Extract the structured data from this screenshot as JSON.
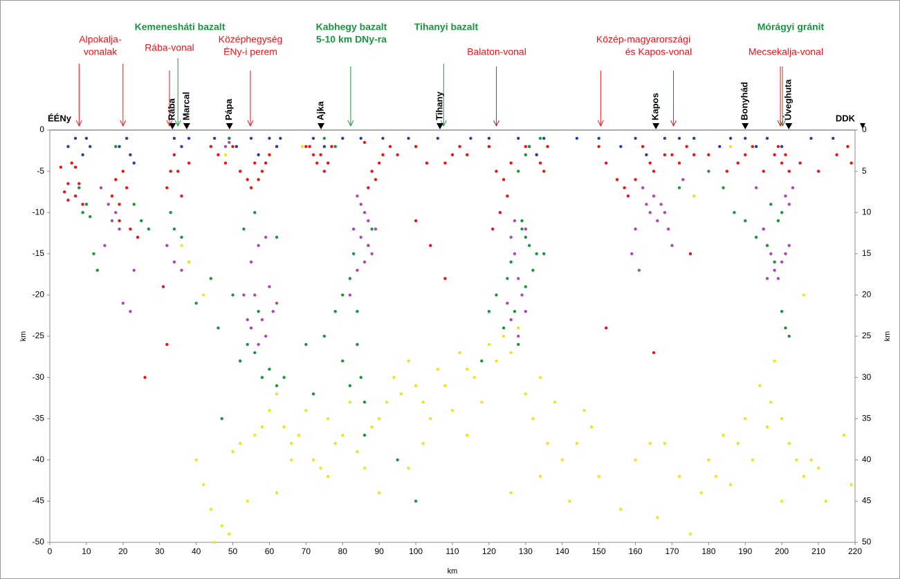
{
  "chart_data": {
    "type": "scatter",
    "xlabel": "km",
    "ylabel": "km",
    "y2label": "km",
    "xlim": [
      0,
      220
    ],
    "xticks": [
      0,
      10,
      20,
      30,
      40,
      50,
      60,
      70,
      80,
      90,
      100,
      110,
      120,
      130,
      140,
      150,
      160,
      170,
      180,
      190,
      200,
      210,
      220
    ],
    "ylim": [
      -50,
      0
    ],
    "yticks": [
      0,
      -5,
      -10,
      -15,
      -20,
      -25,
      -30,
      -35,
      -40,
      -45,
      -50
    ],
    "y2lim": [
      -50,
      0
    ],
    "y2ticks": [
      {
        "value": 0,
        "label": "0"
      },
      {
        "value": -5,
        "label": "5"
      },
      {
        "value": -10,
        "label": "10"
      },
      {
        "value": -15,
        "label": "15"
      },
      {
        "value": -20,
        "label": "20"
      },
      {
        "value": -25,
        "label": "25"
      },
      {
        "value": -30,
        "label": "30"
      },
      {
        "value": -35,
        "label": "35"
      },
      {
        "value": -40,
        "label": "40"
      },
      {
        "value": -45,
        "label": "45"
      },
      {
        "value": -50,
        "label": "50"
      }
    ],
    "ends": [
      "ÉÉNy",
      "DDK"
    ],
    "annotations": [
      {
        "lines": [
          "Alpokalja-",
          "vonalak"
        ],
        "color": "#e8131b",
        "x": [
          8,
          20
        ]
      },
      {
        "lines": [
          "Rába-vonal"
        ],
        "color": "#e8131b",
        "x": [
          32.7
        ]
      },
      {
        "lines": [
          "Középhegység",
          "ÉNy-i perem"
        ],
        "color": "#e8131b",
        "x": [
          54.8
        ]
      },
      {
        "lines": [
          "Balaton-vonal"
        ],
        "color": "#e8131b",
        "x": [
          122
        ]
      },
      {
        "lines": [
          "Közép-magyarországi",
          "és Kapos-vonal"
        ],
        "color": "#e8131b",
        "x": [
          150.5,
          170.4
        ]
      },
      {
        "lines": [
          "Mecsekalja-vonal"
        ],
        "color": "#e8131b",
        "x": [
          199.6
        ]
      },
      {
        "lines": [
          "Kemenesháti bazalt"
        ],
        "color": "#1a9440",
        "x": [
          35
        ]
      },
      {
        "lines": [
          "Kabhegy bazalt",
          "5-10 km DNy-ra"
        ],
        "color": "#1a9440",
        "x": [
          82.2
        ]
      },
      {
        "lines": [
          "Tihanyi bazalt"
        ],
        "color": "#1a9440",
        "x": [
          107.6
        ]
      },
      {
        "lines": [
          "Mórágyi gránit"
        ],
        "color": "#1a9440",
        "x": [
          200.2
        ]
      }
    ],
    "stations": [
      {
        "name": "Rába",
        "x": 33.5
      },
      {
        "name": "Marcal",
        "x": 37.4
      },
      {
        "name": "Pápa",
        "x": 49.1
      },
      {
        "name": "Ajka",
        "x": 74.1
      },
      {
        "name": "Tihany",
        "x": 106.6
      },
      {
        "name": "Kapos",
        "x": 165.6
      },
      {
        "name": "Bonyhád",
        "x": 190
      },
      {
        "name": "Úveghuta",
        "x": 201.9
      }
    ],
    "series": [
      {
        "color": "#e8131b",
        "x": [
          3,
          4,
          5,
          6,
          7,
          8,
          9,
          5,
          7,
          17,
          18,
          19,
          20,
          21,
          19,
          22,
          24,
          26,
          33,
          34,
          35,
          32,
          36,
          38,
          31,
          32,
          44,
          46,
          48,
          52,
          54,
          56,
          58,
          60,
          62,
          55,
          57,
          59,
          50,
          70,
          72,
          73,
          74,
          75,
          76,
          71,
          77,
          88,
          89,
          90,
          91,
          87,
          93,
          95,
          86,
          100,
          103,
          108,
          110,
          112,
          114,
          100,
          104,
          108,
          120,
          122,
          124,
          125,
          126,
          123,
          121,
          130,
          133,
          134,
          135,
          136,
          150,
          152,
          155,
          157,
          158,
          160,
          162,
          164,
          165,
          168,
          170,
          172,
          174,
          176,
          180,
          185,
          188,
          190,
          192,
          195,
          198,
          199,
          200,
          201,
          202,
          205,
          210,
          215,
          218,
          219,
          152,
          165,
          175
        ],
        "values": [
          -4.5,
          -7.5,
          -8.5,
          -4,
          -8,
          -6.5,
          -9,
          -6.5,
          -4.5,
          -8,
          -6,
          -9,
          -5,
          -7,
          -11,
          -12,
          -13,
          -30,
          -5,
          -3,
          -5,
          -7,
          -8,
          -4,
          -19,
          -26,
          -2,
          -3,
          -4,
          -5,
          -6,
          -4,
          -5,
          -3,
          -2,
          -7,
          -6,
          -4,
          -2,
          -2,
          -3,
          -4,
          -3,
          -5,
          -4,
          -2,
          -2,
          -5,
          -6,
          -4,
          -3,
          -7,
          -2,
          -3,
          -1.5,
          -2,
          -4,
          -4,
          -3,
          -2,
          -3,
          -11,
          -14,
          -18,
          -2,
          -5,
          -6,
          -8,
          -4,
          -10,
          -12,
          -2,
          -3,
          -4,
          -5,
          -2,
          -2,
          -4,
          -6,
          -7,
          -8,
          -6,
          -2,
          -4,
          -5,
          -3,
          -3,
          -4,
          -2,
          -3,
          -3,
          -5,
          -4,
          -3,
          -2,
          -5,
          -3,
          -2,
          -4,
          -3,
          -5,
          -4,
          -5,
          -3,
          -2,
          -4,
          -24,
          -27,
          -15
        ]
      },
      {
        "color": "#2a3fa0",
        "x": [
          5,
          7,
          9,
          10,
          11,
          19,
          21,
          22,
          23,
          34,
          36,
          38,
          45,
          49,
          51,
          55,
          57,
          60,
          62,
          63,
          72,
          75,
          80,
          85,
          91,
          98,
          106,
          115,
          120,
          128,
          131,
          133,
          135,
          144,
          150,
          156,
          160,
          163,
          168,
          172,
          176,
          183,
          186,
          190,
          193,
          196,
          200,
          208,
          214
        ],
        "values": [
          -2,
          -1,
          -3,
          -1,
          -2,
          -2,
          -1,
          -3,
          -4,
          -1,
          -2,
          -1,
          -1,
          -1,
          -2,
          -1,
          -3,
          -1,
          -2,
          -1,
          -1,
          -2,
          -1,
          -1,
          -1,
          -1,
          -1,
          -1,
          -1,
          -1,
          -2,
          -3,
          -1,
          -1,
          -1,
          -2,
          -1,
          -3,
          -1,
          -1,
          -1,
          -2,
          -1,
          -1,
          -2,
          -1,
          -2,
          -1,
          -1
        ]
      },
      {
        "color": "#1a9440",
        "x": [
          8,
          9,
          10,
          11,
          12,
          13,
          18,
          23,
          25,
          27,
          33,
          34,
          36,
          38,
          40,
          44,
          46,
          47,
          50,
          52,
          54,
          56,
          57,
          58,
          60,
          62,
          64,
          49,
          53,
          56,
          62,
          70,
          72,
          75,
          78,
          80,
          82,
          83,
          84,
          85,
          86,
          87,
          88,
          80,
          82,
          84,
          86,
          95,
          100,
          118,
          120,
          122,
          124,
          125,
          126,
          127,
          128,
          130,
          131,
          132,
          133,
          135,
          129,
          130,
          131,
          134,
          130,
          172,
          180,
          184,
          187,
          190,
          193,
          195,
          197,
          198,
          200,
          201,
          202,
          199,
          196,
          200,
          75,
          78,
          128,
          129
        ],
        "values": [
          -7,
          -10,
          -9,
          -10.5,
          -15,
          -17,
          -2,
          -9,
          -11,
          -12,
          -10,
          -12,
          -13,
          -16,
          -21,
          -18,
          -24,
          -35,
          -20,
          -28,
          -26,
          -27,
          -22,
          -30,
          -29,
          -31,
          -30,
          -1,
          -12,
          -10,
          -13,
          -26,
          -32,
          -25,
          -22,
          -20,
          -18,
          -15,
          -26,
          -30,
          -33,
          -14,
          -12,
          -28,
          -31,
          -22,
          -37,
          -40,
          -45,
          -28,
          -22,
          -20,
          -24,
          -18,
          -16,
          -22,
          -26,
          -19,
          -14,
          -17,
          -15,
          -15,
          -12,
          -3,
          -2,
          -1,
          -13,
          -7,
          -5,
          -7,
          -10,
          -11,
          -13,
          -12,
          -9,
          -16,
          -22,
          -24,
          -25,
          -11,
          -14,
          -10,
          -1,
          -2,
          -5,
          -11
        ]
      },
      {
        "color": "#b044b8",
        "x": [
          14,
          16,
          17,
          18,
          19,
          20,
          22,
          23,
          15,
          32,
          34,
          36,
          53,
          54,
          55,
          56,
          57,
          58,
          59,
          60,
          61,
          62,
          55,
          57,
          59,
          84,
          85,
          86,
          87,
          83,
          84,
          85,
          86,
          87,
          88,
          82,
          89,
          126,
          127,
          128,
          129,
          130,
          126,
          125,
          128,
          130,
          127,
          162,
          163,
          164,
          165,
          166,
          167,
          168,
          160,
          159,
          161,
          169,
          170,
          173,
          193,
          195,
          197,
          198,
          199,
          200,
          201,
          202,
          203,
          202,
          201,
          196,
          48,
          49
        ],
        "values": [
          -7,
          -9,
          -11,
          -10,
          -12,
          -21,
          -22,
          -17,
          -14,
          -14,
          -16,
          -17,
          -20,
          -23,
          -24,
          -20,
          -26,
          -23,
          -25,
          -19,
          -22,
          -21,
          -16,
          -14,
          -13,
          -8,
          -9,
          -10,
          -11,
          -12,
          -17,
          -13,
          -16,
          -14,
          -15,
          -20,
          -12,
          -13,
          -15,
          -18,
          -20,
          -22,
          -23,
          -21,
          -25,
          -12,
          -11,
          -7,
          -9,
          -10,
          -8,
          -11,
          -9,
          -10,
          -12,
          -15,
          -17,
          -12,
          -14,
          -6,
          -7,
          -12,
          -15,
          -17,
          -18,
          -16,
          -15,
          -14,
          -7,
          -9,
          -8,
          -18,
          -2,
          -1.5
        ]
      },
      {
        "color": "#f0e614",
        "x": [
          40,
          42,
          44,
          45,
          47,
          49,
          50,
          52,
          54,
          56,
          58,
          60,
          62,
          64,
          66,
          68,
          70,
          72,
          74,
          76,
          78,
          80,
          82,
          84,
          86,
          88,
          90,
          92,
          94,
          96,
          98,
          100,
          102,
          104,
          106,
          108,
          110,
          112,
          114,
          116,
          118,
          120,
          122,
          124,
          126,
          128,
          130,
          132,
          134,
          136,
          138,
          140,
          142,
          144,
          146,
          148,
          150,
          156,
          160,
          164,
          166,
          168,
          172,
          175,
          178,
          180,
          182,
          184,
          186,
          188,
          190,
          192,
          194,
          196,
          198,
          200,
          202,
          204,
          206,
          208,
          210,
          212,
          217,
          219,
          206,
          90,
          36,
          38,
          42,
          62,
          66,
          76,
          98,
          102,
          114,
          126,
          134,
          48,
          69,
          176,
          186,
          200,
          197
        ],
        "values": [
          -40,
          -43,
          -46,
          -50,
          -48,
          -49,
          -39,
          -38,
          -45,
          -37,
          -36,
          -34,
          -32,
          -36,
          -38,
          -37,
          -34,
          -40,
          -41,
          -35,
          -38,
          -37,
          -33,
          -39,
          -41,
          -36,
          -35,
          -33,
          -30,
          -32,
          -28,
          -31,
          -33,
          -35,
          -29,
          -31,
          -34,
          -27,
          -29,
          -30,
          -33,
          -26,
          -28,
          -25,
          -27,
          -24,
          -32,
          -35,
          -30,
          -38,
          -33,
          -40,
          -45,
          -38,
          -34,
          -36,
          -42,
          -46,
          -40,
          -38,
          -47,
          -38,
          -42,
          -49,
          -44,
          -40,
          -42,
          -37,
          -43,
          -38,
          -35,
          -40,
          -31,
          -36,
          -28,
          -45,
          -38,
          -40,
          -42,
          -40,
          -41,
          -45,
          -37,
          -43,
          -20,
          -44,
          -14,
          -16,
          -20,
          -44,
          -40,
          -42,
          -41,
          -38,
          -37,
          -44,
          -42,
          -3,
          -2,
          -8,
          -2,
          -35,
          -33
        ]
      }
    ]
  }
}
